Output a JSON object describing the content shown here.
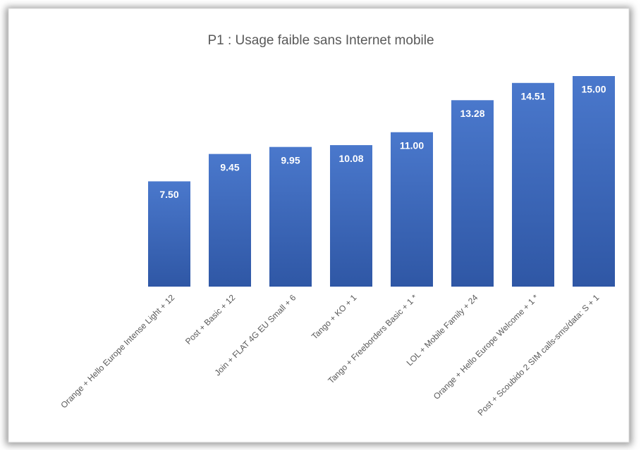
{
  "chart_data": {
    "type": "bar",
    "title": "P1 : Usage faible sans Internet mobile",
    "categories": [
      "Orange + Hello Europe Intense Light + 12",
      "Post + Basic + 12",
      "Join + FLAT 4G EU Small + 6",
      "Tango + KO + 1",
      "Tango + Freeborders Basic + 1 *",
      "LOL + Mobile Family + 24",
      "Orange + Hello Europe Welcome + 1 *",
      "Post + Scoubido 2 SIM calls-sms/data: S + 1"
    ],
    "values": [
      7.5,
      9.45,
      9.95,
      10.08,
      11,
      13.28,
      14.51,
      15
    ],
    "value_labels": [
      "7.50",
      "9.45",
      "9.95",
      "10.08",
      "11.00",
      "13.28",
      "14.51",
      "15.00"
    ],
    "color": "#4472c4",
    "ylim": [
      0,
      15
    ]
  }
}
